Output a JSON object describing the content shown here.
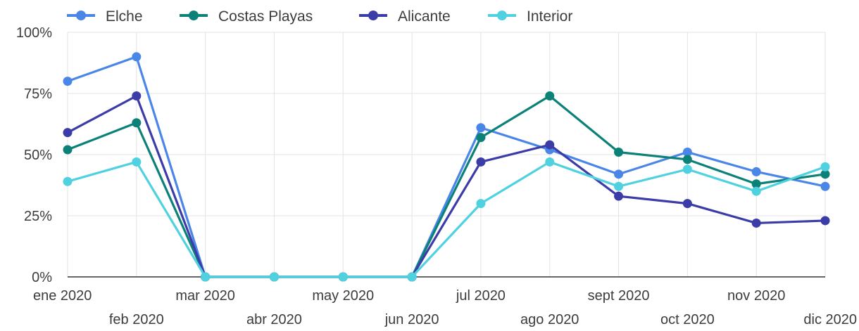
{
  "chart_data": {
    "type": "line",
    "categories": [
      "ene 2020",
      "feb 2020",
      "mar 2020",
      "abr 2020",
      "may 2020",
      "jun 2020",
      "jul 2020",
      "ago 2020",
      "sept 2020",
      "oct 2020",
      "nov 2020",
      "dic 2020"
    ],
    "y_ticks": [
      "0%",
      "25%",
      "50%",
      "75%",
      "100%"
    ],
    "ylim": [
      0,
      100
    ],
    "grid": true,
    "legend_position": "top-left",
    "series": [
      {
        "name": "Elche",
        "color": "#4a86e8",
        "values": [
          80,
          90,
          0,
          0,
          0,
          0,
          61,
          52,
          42,
          51,
          43,
          37
        ]
      },
      {
        "name": "Costas Playas",
        "color": "#0b8178",
        "values": [
          52,
          63,
          0,
          0,
          0,
          0,
          57,
          74,
          51,
          48,
          38,
          42
        ]
      },
      {
        "name": "Alicante",
        "color": "#3c3ca8",
        "values": [
          59,
          74,
          0,
          0,
          0,
          0,
          47,
          54,
          33,
          30,
          22,
          23
        ]
      },
      {
        "name": "Interior",
        "color": "#4fd1e0",
        "values": [
          39,
          47,
          0,
          0,
          0,
          0,
          30,
          47,
          37,
          44,
          35,
          45
        ]
      }
    ]
  }
}
